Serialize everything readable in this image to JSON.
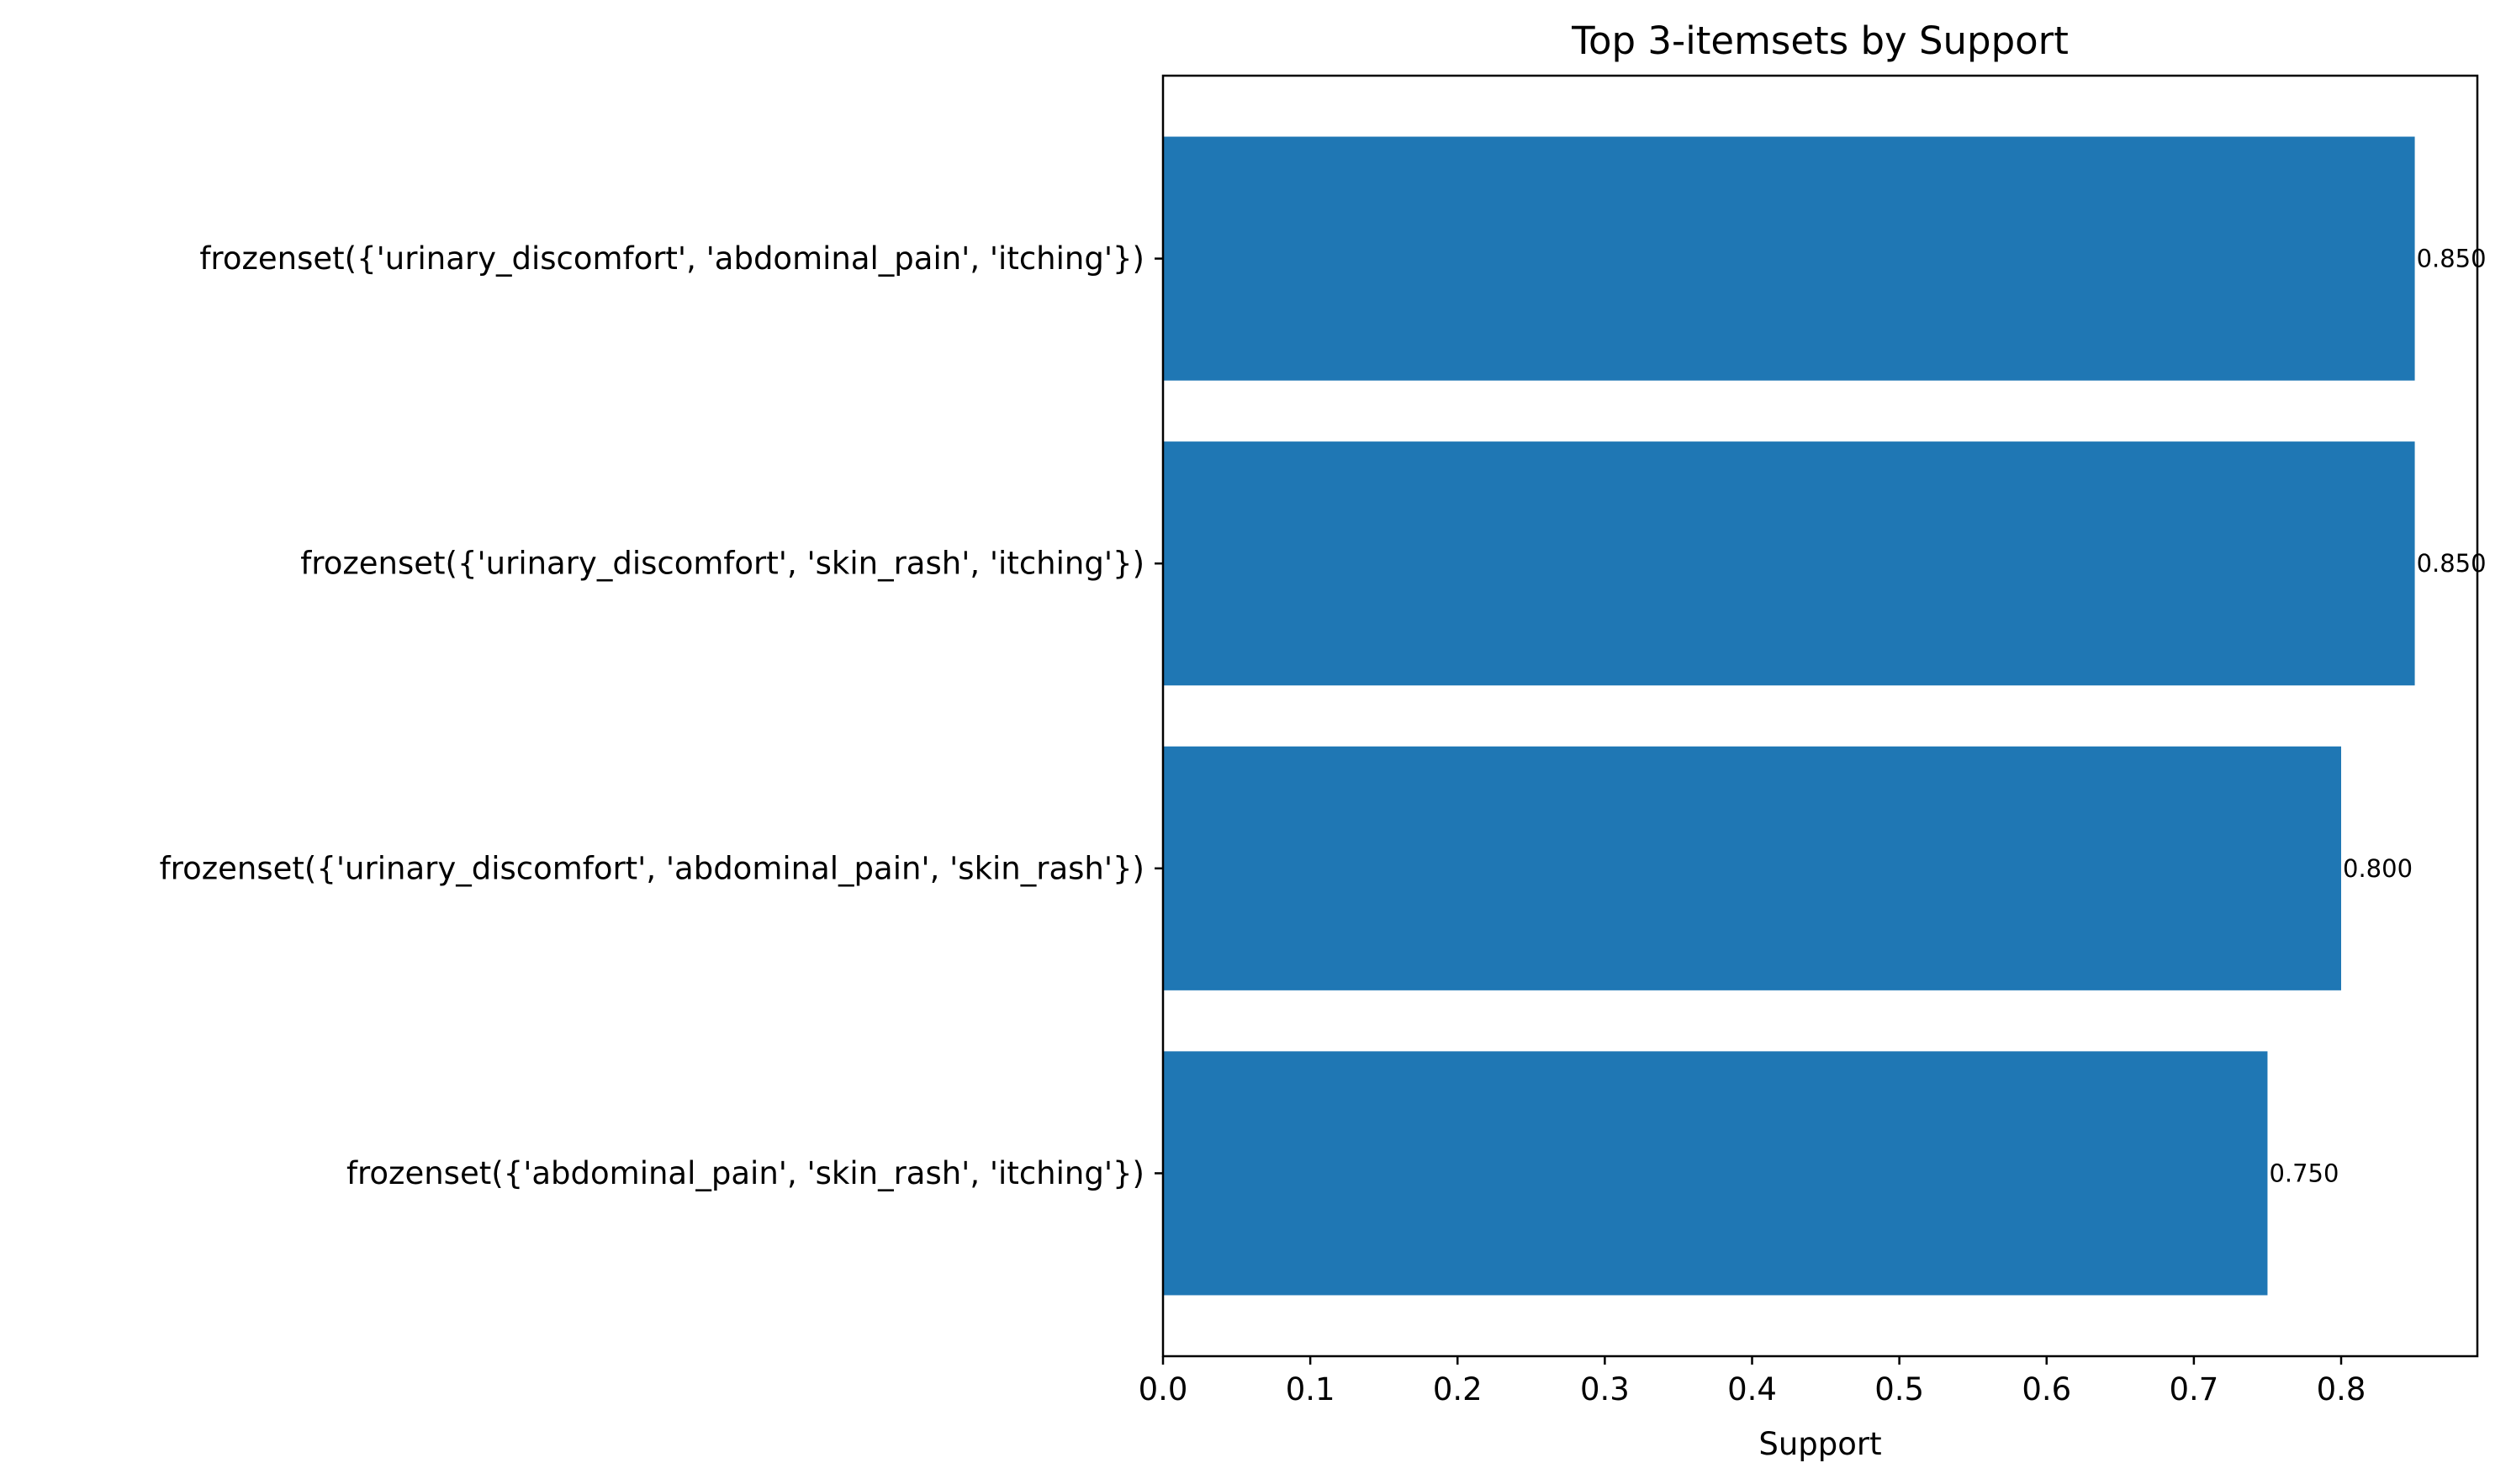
{
  "chart_data": {
    "type": "bar",
    "orientation": "horizontal",
    "title": "Top 3-itemsets by Support",
    "xlabel": "Support",
    "ylabel": "",
    "categories": [
      "frozenset({'urinary_discomfort', 'abdominal_pain', 'itching'})",
      "frozenset({'urinary_discomfort', 'skin_rash', 'itching'})",
      "frozenset({'urinary_discomfort', 'abdominal_pain', 'skin_rash'})",
      "frozenset({'abdominal_pain', 'skin_rash', 'itching'})"
    ],
    "values": [
      0.85,
      0.85,
      0.8,
      0.75
    ],
    "value_labels": [
      "0.850",
      "0.850",
      "0.800",
      "0.750"
    ],
    "xlim": [
      0,
      0.8925
    ],
    "xticks": [
      0.0,
      0.1,
      0.2,
      0.3,
      0.4,
      0.5,
      0.6,
      0.7,
      0.8
    ],
    "xtick_labels": [
      "0.0",
      "0.1",
      "0.2",
      "0.3",
      "0.4",
      "0.5",
      "0.6",
      "0.7",
      "0.8"
    ],
    "grid": false,
    "bar_color": "#1f77b4"
  }
}
